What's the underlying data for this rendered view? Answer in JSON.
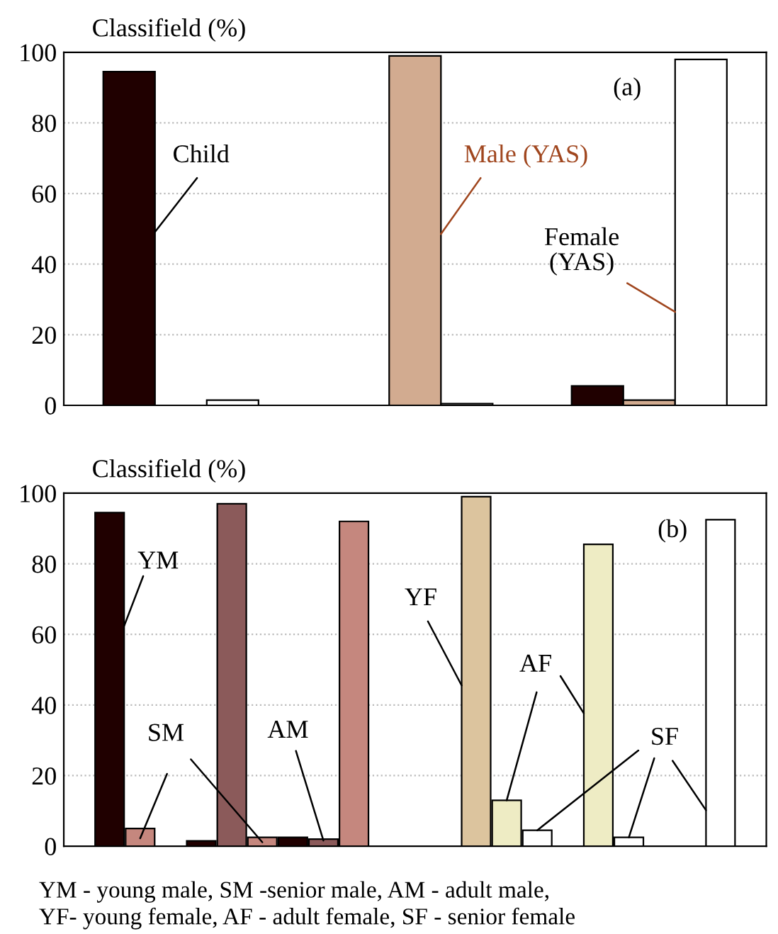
{
  "chart_data": [
    {
      "type": "bar",
      "ylabel": "Classifield (%)",
      "categories": [
        null,
        null,
        null
      ],
      "series": [
        {
          "name": "Child",
          "color": "#200000",
          "values": [
            94.5,
            null,
            5.5
          ]
        },
        {
          "name": "Male (YAS)",
          "color": "#d2ab90",
          "values": [
            null,
            99,
            1.5
          ]
        },
        {
          "name": "Female\n(YAS)",
          "color": "#ffffff",
          "values": [
            1.5,
            0.5,
            98
          ]
        }
      ],
      "ylim": [
        0,
        100
      ],
      "yticks": [
        0,
        20,
        40,
        60,
        80,
        100
      ],
      "grid": "y",
      "annotations": [
        "(a)"
      ]
    },
    {
      "type": "bar",
      "ylabel": "Classifield (%)",
      "categories": [
        null,
        null,
        null,
        null,
        null,
        null,
        null,
        null,
        null,
        null,
        null,
        null,
        null,
        null,
        null,
        null,
        null,
        null,
        null,
        null,
        null,
        null,
        null
      ],
      "values": [
        null,
        94.5,
        5,
        null,
        1.5,
        97,
        2.5,
        2.5,
        2,
        92,
        null,
        null,
        null,
        99,
        13,
        4.5,
        null,
        85.5,
        2.5,
        null,
        null,
        92.5,
        null
      ],
      "colors": [
        null,
        "#200000",
        "#c5877e",
        null,
        "#200000",
        "#8b5a5a",
        "#c5877e",
        "#200000",
        "#8b5a5a",
        "#c5877e",
        null,
        null,
        null,
        "#dcc49e",
        "#eeecc4",
        "#ffffff",
        null,
        "#eeecc4",
        "#ffffff",
        null,
        null,
        "#ffffff",
        null
      ],
      "ylim": [
        0,
        100
      ],
      "yticks": [
        0,
        20,
        40,
        60,
        80,
        100
      ],
      "grid": "y",
      "annotations": [
        "(b)",
        "YM",
        "SM",
        "AM",
        "YF",
        "AF",
        "SF",
        "YM - young male, SM -senior male, AM - adult male,\nYF- young female, AF - adult female, SF - senior female"
      ]
    }
  ]
}
